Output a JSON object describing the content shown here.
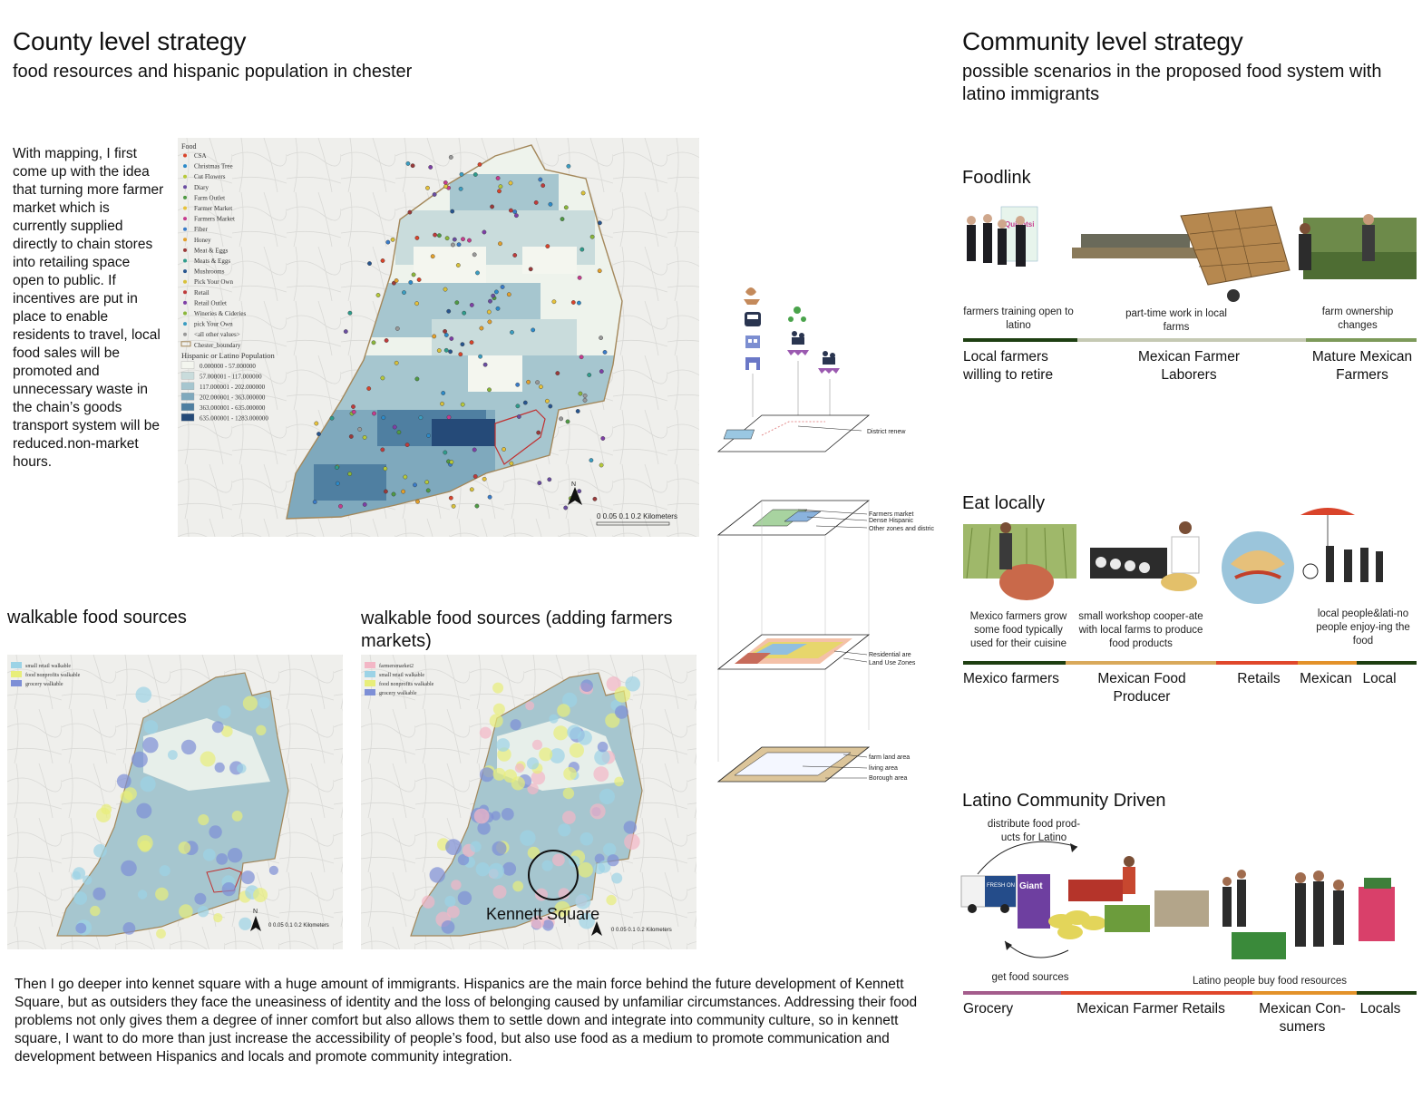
{
  "county": {
    "title": "County level strategy",
    "subtitle": "food resources and hispanic population in chester",
    "paragraph": "With mapping, I first come up with the idea that turning more farmer market which is currently supplied directly to chain stores into retailing space open to public. If incentives are put in place to enable residents to travel, local food sales will be promoted and unnecessary waste in the chain’s goods transport system will be reduced.non-market hours."
  },
  "main_map": {
    "legend_title": "Food",
    "legend_items": [
      {
        "label": "CSA",
        "color": "#d9442b"
      },
      {
        "label": "Christmas Tree",
        "color": "#2c8ac9"
      },
      {
        "label": "Cut Flowers",
        "color": "#b7c93a"
      },
      {
        "label": "Diary",
        "color": "#6a4da1"
      },
      {
        "label": "Farm Outlet",
        "color": "#4f9a44"
      },
      {
        "label": "Farmer Market",
        "color": "#e7c23a"
      },
      {
        "label": "Farmers Market",
        "color": "#c63c8e"
      },
      {
        "label": "Fiber",
        "color": "#3a7cc9"
      },
      {
        "label": "Honey",
        "color": "#e3a02c"
      },
      {
        "label": "Meat & Eggs",
        "color": "#9a3a3a"
      },
      {
        "label": "Meats & Eggs",
        "color": "#2e9c8c"
      },
      {
        "label": "Mushrooms",
        "color": "#27558f"
      },
      {
        "label": "Pick Your Own",
        "color": "#d8c13a"
      },
      {
        "label": "Retail",
        "color": "#bf3b3b"
      },
      {
        "label": "Retail Outlet",
        "color": "#7e3ea6"
      },
      {
        "label": "Wineries & Cideries",
        "color": "#8ab63a"
      },
      {
        "label": "pick Your Own",
        "color": "#3b9dc1"
      },
      {
        "label": "<all other values>",
        "color": "#999999"
      }
    ],
    "boundary_label": "Chester_boundary",
    "pop_title": "Hispanic or Latino Population",
    "pop_classes": [
      {
        "label": "0.000000 - 57.000000",
        "color": "#f4f6ef"
      },
      {
        "label": "57.000001 - 117.000000",
        "color": "#c9dcdc"
      },
      {
        "label": "117.000001 - 202.000000",
        "color": "#a6c6cf"
      },
      {
        "label": "202.000001 - 363.000000",
        "color": "#7fa9bd"
      },
      {
        "label": "363.000001 - 635.000000",
        "color": "#4f7fa1"
      },
      {
        "label": "635.000001 - 1283.000000",
        "color": "#254a78"
      }
    ],
    "north": "N",
    "scale": "0 0.05 0.1        0.2 Kilometers"
  },
  "walkable": {
    "title": "walkable food sources",
    "legend": [
      {
        "label": "small retail walkable",
        "color": "#9cd3e6"
      },
      {
        "label": "food nonprofits walkable",
        "color": "#e8ee7a"
      },
      {
        "label": "grocery walkable",
        "color": "#7d8fd6"
      }
    ],
    "north": "N",
    "scale": "0 0.05 0.1     0.2 Kilometers"
  },
  "walkable_fm": {
    "title": "walkable food sources (adding farmers markets)",
    "legend": [
      {
        "label": "farmersmarket2",
        "color": "#f3b7c6"
      },
      {
        "label": "small retail walkable",
        "color": "#9cd3e6"
      },
      {
        "label": "food nonprofits walkable",
        "color": "#e8ee7a"
      },
      {
        "label": "grocery walkable",
        "color": "#7d8fd6"
      }
    ],
    "highlight": "Kennett Square",
    "scale": "0 0.05 0.1     0.2 Kilometers"
  },
  "layers": {
    "district_renew": "District renew",
    "farmers_market": "Farmers market",
    "dense_hispanic": "Dense Hispanic",
    "other_zones": "Other zones and distric",
    "residential": "Residential are",
    "land_use": "Land Use Zones",
    "farm_land": "farm land area",
    "living": "living area",
    "borough": "Borough area"
  },
  "bottom_paragraph": "Then I go deeper into kennet square with a huge amount of immigrants. Hispanics are the main force behind the future development of Kennett  Square, but as outsiders they face the uneasiness of identity and the loss of belonging caused by unfamiliar circumstances. Addressing their food problems not only gives them a degree of inner comfort but also allows them to settle down and integrate into community culture, so in kennett square, I want to do more than just increase the accessibility of people’s food, but also use food as a medium to promote communication and development between Hispanics and locals and promote community integration.",
  "community": {
    "title": "Community level strategy",
    "subtitle": "possible scenarios in the proposed food system with latino immigrants"
  },
  "foodlink": {
    "title": "Foodlink",
    "sign": "Quipotsi",
    "captions": [
      "farmers training open to latino",
      "part-time work in local farms",
      "farm ownership changes"
    ],
    "labels": [
      "Local farmers willing to retire",
      "Mexican Farmer Laborers",
      "Mature Mexican Farmers"
    ],
    "bar_colors": [
      "#1e3f12",
      "#c5c9b3",
      "#7d9a5a"
    ]
  },
  "eat": {
    "title": "Eat locally",
    "captions": [
      "Mexico farmers grow some food typically used for their cuisine",
      "small workshop cooper-ate with local farms to produce food products",
      "local people&lati-no people enjoy-ing the food"
    ],
    "labels": [
      "Mexico farmers",
      "Mexican Food Producer",
      "Retails",
      "Mexican",
      "Local"
    ],
    "bar_colors": [
      "#1e3f12",
      "#d9a95b",
      "#e0472b",
      "#e3922a",
      "#1e3f12"
    ]
  },
  "latino": {
    "title": "Latino Community Driven",
    "top_caption": "distribute food prod-ucts for Latino",
    "bottom_caption": "get food sources",
    "right_caption": "Latino people buy food resources",
    "truck_text": "FRESH ON THE MOVE",
    "store_sign": "Giant",
    "labels": [
      "Grocery",
      "Mexican Farmer Retails",
      "Mexican Con-sumers",
      "Locals"
    ],
    "bar_colors": [
      "#a45c8c",
      "#e0472b",
      "#e3922a",
      "#1e3f12"
    ]
  }
}
